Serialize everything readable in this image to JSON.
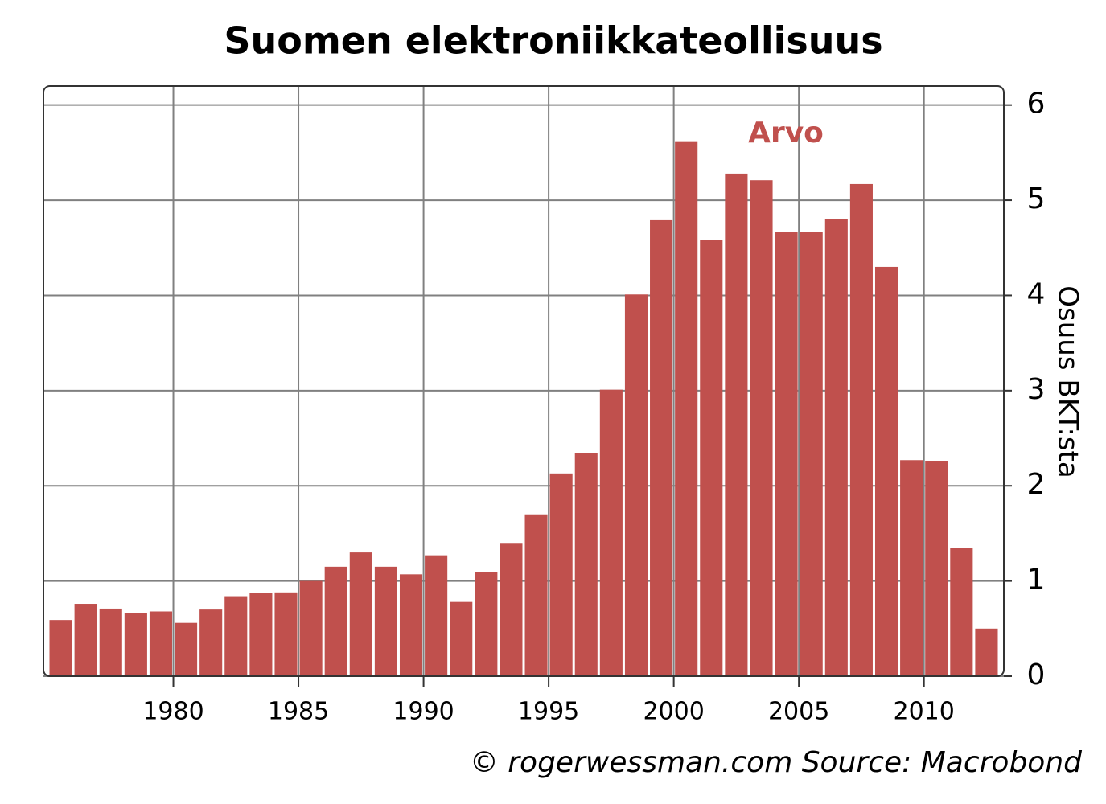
{
  "chart_data": {
    "type": "bar",
    "title": "Suomen elektroniikkateollisuus",
    "series": [
      {
        "name": "Arvo",
        "color": "#c0504d",
        "values": [
          0.59,
          0.76,
          0.71,
          0.66,
          0.68,
          0.56,
          0.7,
          0.84,
          0.87,
          0.88,
          1.0,
          1.15,
          1.3,
          1.15,
          1.07,
          1.27,
          0.78,
          1.09,
          1.4,
          1.7,
          2.13,
          2.34,
          3.01,
          4.01,
          4.79,
          5.62,
          4.58,
          5.28,
          5.21,
          4.67,
          4.67,
          4.8,
          5.17,
          4.3,
          2.27,
          2.26,
          1.35,
          0.5
        ]
      }
    ],
    "x": [
      1975,
      1976,
      1977,
      1978,
      1979,
      1980,
      1981,
      1982,
      1983,
      1984,
      1985,
      1986,
      1987,
      1988,
      1989,
      1990,
      1991,
      1992,
      1993,
      1994,
      1995,
      1996,
      1997,
      1998,
      1999,
      2000,
      2001,
      2002,
      2003,
      2004,
      2005,
      2006,
      2007,
      2008,
      2009,
      2010,
      2011,
      2012
    ],
    "xlim": [
      1975,
      2013
    ],
    "xticks": [
      1980,
      1985,
      1990,
      1995,
      2000,
      2005,
      2010
    ],
    "ylim": [
      0,
      6.2
    ],
    "yticks": [
      0,
      1,
      2,
      3,
      4,
      5,
      6
    ],
    "y_label": "Osuus BKT:sta",
    "footer": "© rogerwessman.com Source: Macrobond",
    "grid": true
  }
}
